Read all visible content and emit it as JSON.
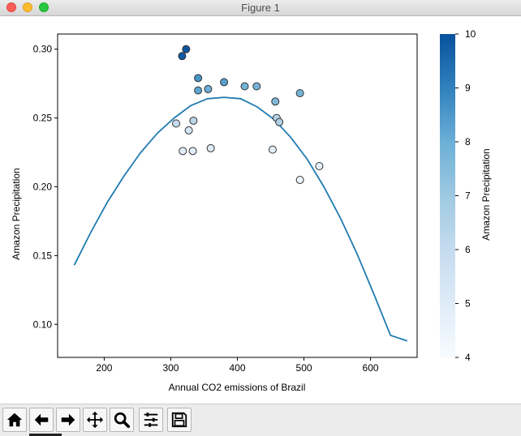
{
  "window": {
    "title": "Figure 1"
  },
  "toolbar": {
    "buttons": [
      {
        "icon": "home-icon"
      },
      {
        "icon": "back-arrow-icon"
      },
      {
        "icon": "forward-arrow-icon"
      },
      {
        "icon": "pan-move-icon"
      },
      {
        "icon": "zoom-magnifier-icon"
      },
      {
        "icon": "configure-subplots-icon"
      },
      {
        "icon": "save-floppy-icon"
      }
    ]
  },
  "chart_data": {
    "type": "scatter",
    "xlabel": "Annual CO2 emissions of Brazil",
    "ylabel": "Amazon Precipitation",
    "xlim": [
      130,
      670
    ],
    "ylim": [
      0.076,
      0.311
    ],
    "x_ticks": [
      200,
      300,
      400,
      500,
      600
    ],
    "y_ticks": [
      0.1,
      0.15,
      0.2,
      0.25,
      0.3
    ],
    "x_tick_labels": [
      "200",
      "300",
      "400",
      "500",
      "600"
    ],
    "y_tick_labels": [
      "0.10",
      "0.15",
      "0.20",
      "0.25",
      "0.30"
    ],
    "grid": false,
    "points": [
      {
        "x": 317,
        "y": 0.295,
        "c": 9.8
      },
      {
        "x": 323,
        "y": 0.3,
        "c": 9.9
      },
      {
        "x": 341,
        "y": 0.279,
        "c": 8.6
      },
      {
        "x": 341,
        "y": 0.27,
        "c": 8.2
      },
      {
        "x": 356,
        "y": 0.271,
        "c": 8.0
      },
      {
        "x": 380,
        "y": 0.276,
        "c": 8.3
      },
      {
        "x": 411,
        "y": 0.273,
        "c": 7.8
      },
      {
        "x": 429,
        "y": 0.273,
        "c": 7.8
      },
      {
        "x": 457,
        "y": 0.262,
        "c": 7.6
      },
      {
        "x": 494,
        "y": 0.268,
        "c": 7.8
      },
      {
        "x": 308,
        "y": 0.246,
        "c": 6.0
      },
      {
        "x": 327,
        "y": 0.241,
        "c": 5.3
      },
      {
        "x": 334,
        "y": 0.248,
        "c": 6.3
      },
      {
        "x": 318,
        "y": 0.226,
        "c": 4.8
      },
      {
        "x": 333,
        "y": 0.226,
        "c": 4.9
      },
      {
        "x": 360,
        "y": 0.228,
        "c": 5.0
      },
      {
        "x": 459,
        "y": 0.25,
        "c": 6.4
      },
      {
        "x": 463,
        "y": 0.247,
        "c": 6.6
      },
      {
        "x": 453,
        "y": 0.227,
        "c": 4.8
      },
      {
        "x": 494,
        "y": 0.205,
        "c": 4.4
      },
      {
        "x": 523,
        "y": 0.215,
        "c": 4.7
      }
    ],
    "fit_curve": {
      "x": [
        155,
        180,
        205,
        230,
        255,
        280,
        305,
        330,
        355,
        380,
        405,
        430,
        455,
        480,
        505,
        530,
        555,
        580,
        605,
        630,
        655
      ],
      "y": [
        0.143,
        0.167,
        0.189,
        0.208,
        0.225,
        0.239,
        0.25,
        0.259,
        0.264,
        0.265,
        0.264,
        0.258,
        0.249,
        0.236,
        0.22,
        0.2,
        0.177,
        0.151,
        0.122,
        0.092,
        0.088
      ],
      "color": "#1f7bb0"
    },
    "colorbar": {
      "label": "Amazon Precipitation",
      "min": 4,
      "max": 10,
      "ticks": [
        4,
        5,
        6,
        7,
        8,
        9,
        10
      ],
      "tick_labels": [
        "4",
        "5",
        "6",
        "7",
        "8",
        "9",
        "10"
      ],
      "colormap": "Blues"
    }
  }
}
